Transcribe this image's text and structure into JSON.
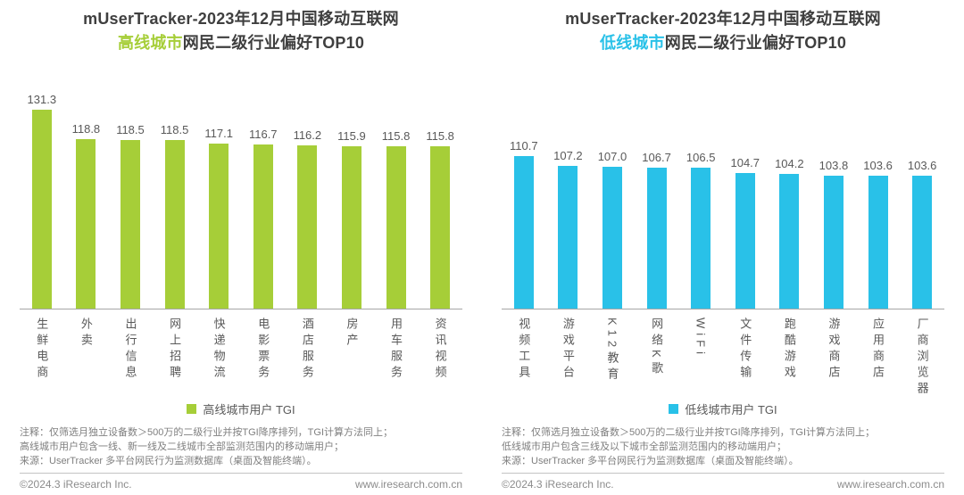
{
  "panels": [
    {
      "title_line1": "mUserTracker-2023年12月中国移动互联网",
      "title_highlight": "高线城市",
      "title_rest": "网民二级行业偏好TOP10",
      "accent_color": "#a6ce38",
      "legend_label": "高线城市用户 TGI",
      "notes": [
        "注释：仅筛选月独立设备数＞500万的二级行业并按TGI降序排列，TGI计算方法同上；",
        "高线城市用户包含一线、新一线及二线城市全部监测范围内的移动端用户；",
        "来源：UserTracker 多平台网民行为监测数据库（桌面及智能终端）。"
      ]
    },
    {
      "title_line1": "mUserTracker-2023年12月中国移动互联网",
      "title_highlight": "低线城市",
      "title_rest": "网民二级行业偏好TOP10",
      "accent_color": "#29c1e8",
      "legend_label": "低线城市用户 TGI",
      "notes": [
        "注释：仅筛选月独立设备数＞500万的二级行业并按TGI降序排列，TGI计算方法同上；",
        "低线城市用户包含三线及以下城市全部监测范围内的移动端用户；",
        "来源：UserTracker 多平台网民行为监测数据库（桌面及智能终端）。"
      ]
    }
  ],
  "footer": {
    "copyright": "©2024.3 iResearch Inc.",
    "website": "www.iresearch.com.cn"
  },
  "chart_data": [
    {
      "type": "bar",
      "title": "mUserTracker-2023年12月中国移动互联网高线城市网民二级行业偏好TOP10",
      "categories": [
        "生鲜电商",
        "外卖",
        "出行信息",
        "网上招聘",
        "快递物流",
        "电影票务",
        "酒店服务",
        "房产",
        "用车服务",
        "资讯视频"
      ],
      "values": [
        131.3,
        118.8,
        118.5,
        118.5,
        117.1,
        116.7,
        116.2,
        115.9,
        115.8,
        115.8
      ],
      "xlabel": "",
      "ylabel": "TGI",
      "ylim": [
        48,
        133
      ],
      "grid": false,
      "data_labels": true,
      "bar_color": "#a6ce38",
      "legend": [
        "高线城市用户 TGI"
      ],
      "legend_position": "bottom"
    },
    {
      "type": "bar",
      "title": "mUserTracker-2023年12月中国移动互联网低线城市网民二级行业偏好TOP10",
      "categories": [
        "视频工具",
        "游戏平台",
        "K12教育",
        "网络K歌",
        "WiFi",
        "文件传输",
        "跑酷游戏",
        "游戏商店",
        "应用商店",
        "厂商浏览器"
      ],
      "values": [
        110.7,
        107.2,
        107.0,
        106.7,
        106.5,
        104.7,
        104.2,
        103.8,
        103.6,
        103.6
      ],
      "xlabel": "",
      "ylabel": "TGI",
      "ylim": [
        56,
        129
      ],
      "grid": false,
      "data_labels": true,
      "bar_color": "#29c1e8",
      "legend": [
        "低线城市用户 TGI"
      ],
      "legend_position": "bottom"
    }
  ]
}
